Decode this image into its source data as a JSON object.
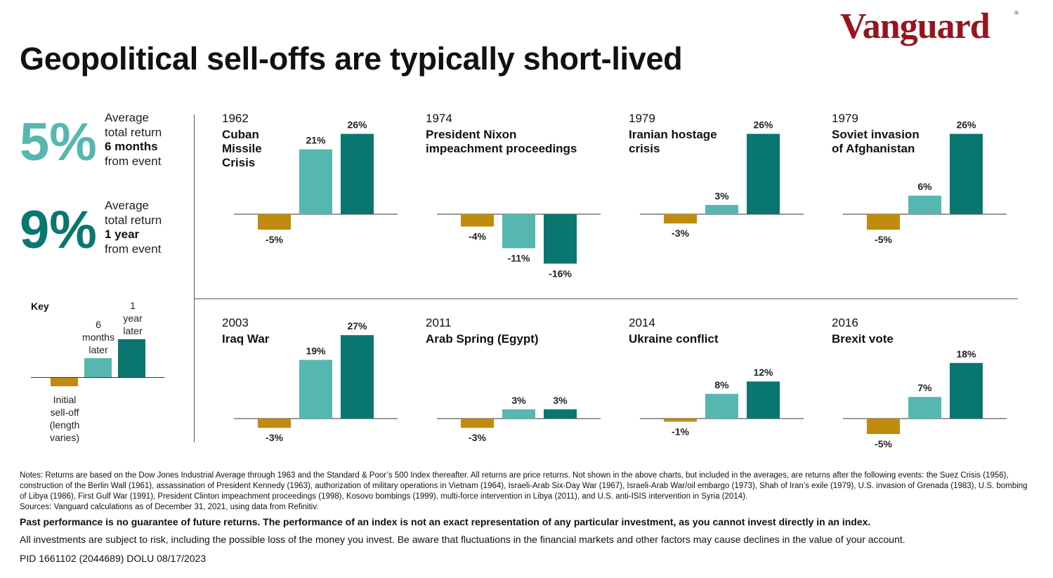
{
  "brand": "Vanguard",
  "title": "Geopolitical sell-offs are typically short-lived",
  "colors": {
    "initial": "#c08b0e",
    "six_months": "#56b7b0",
    "one_year": "#0a7670",
    "brand": "#96151d"
  },
  "stats": [
    {
      "value": "5%",
      "line1": "Average",
      "line2": "total return",
      "line3": "6 months",
      "line4": "from event"
    },
    {
      "value": "9%",
      "line1": "Average",
      "line2": "total return",
      "line3": "1 year",
      "line4": "from event"
    }
  ],
  "key": {
    "title": "Key",
    "one_year_label": [
      "1",
      "year",
      "later"
    ],
    "six_months_label": [
      "6",
      "months",
      "later"
    ],
    "initial_label": [
      "Initial",
      "sell-off",
      "(length",
      "varies)"
    ]
  },
  "chart_data": [
    {
      "type": "bar",
      "year": "1962",
      "title_lines": [
        "Cuban",
        "Missile",
        "Crisis"
      ],
      "categories": [
        "Initial sell-off",
        "6 months later",
        "1 year later"
      ],
      "values": [
        -5,
        21,
        26
      ],
      "labels": [
        "-5%",
        "21%",
        "26%"
      ]
    },
    {
      "type": "bar",
      "year": "1974",
      "title_lines": [
        "President Nixon",
        "impeachment proceedings"
      ],
      "categories": [
        "Initial sell-off",
        "6 months later",
        "1 year later"
      ],
      "values": [
        -4,
        -11,
        -16
      ],
      "labels": [
        "-4%",
        "-11%",
        "-16%"
      ]
    },
    {
      "type": "bar",
      "year": "1979",
      "title_lines": [
        "Iranian hostage",
        "crisis"
      ],
      "categories": [
        "Initial sell-off",
        "6 months later",
        "1 year later"
      ],
      "values": [
        -3,
        3,
        26
      ],
      "labels": [
        "-3%",
        "3%",
        "26%"
      ]
    },
    {
      "type": "bar",
      "year": "1979",
      "title_lines": [
        "Soviet invasion",
        "of Afghanistan"
      ],
      "categories": [
        "Initial sell-off",
        "6 months later",
        "1 year later"
      ],
      "values": [
        -5,
        6,
        26
      ],
      "labels": [
        "-5%",
        "6%",
        "26%"
      ]
    },
    {
      "type": "bar",
      "year": "2003",
      "title_lines": [
        "Iraq War"
      ],
      "categories": [
        "Initial sell-off",
        "6 months later",
        "1 year later"
      ],
      "values": [
        -3,
        19,
        27
      ],
      "labels": [
        "-3%",
        "19%",
        "27%"
      ]
    },
    {
      "type": "bar",
      "year": "2011",
      "title_lines": [
        "Arab Spring (Egypt)"
      ],
      "categories": [
        "Initial sell-off",
        "6 months later",
        "1 year later"
      ],
      "values": [
        -3,
        3,
        3
      ],
      "labels": [
        "-3%",
        "3%",
        "3%"
      ]
    },
    {
      "type": "bar",
      "year": "2014",
      "title_lines": [
        "Ukraine conflict"
      ],
      "categories": [
        "Initial sell-off",
        "6 months later",
        "1 year later"
      ],
      "values": [
        -1,
        8,
        12
      ],
      "labels": [
        "-1%",
        "8%",
        "12%"
      ]
    },
    {
      "type": "bar",
      "year": "2016",
      "title_lines": [
        "Brexit vote"
      ],
      "categories": [
        "Initial sell-off",
        "6 months later",
        "1 year later"
      ],
      "values": [
        -5,
        7,
        18
      ],
      "labels": [
        "-5%",
        "7%",
        "18%"
      ]
    }
  ],
  "notes": {
    "main": "Notes: Returns are based on the Dow Jones Industrial Average through 1963 and the Standard & Poor’s 500 Index thereafter. All returns are price returns. Not shown in the above charts, but included in the averages, are returns after the following events: the Suez Crisis (1956), construction of the Berlin Wall (1961), assassination of President Kennedy (1963), authorization of military operations in Vietnam (1964), Israeli-Arab Six-Day War (1967), Israeli-Arab War/oil embargo (1973), Shah of Iran’s exile (1979), U.S. invasion of Grenada (1983), U.S. bombing of Libya (1986), First Gulf War (1991), President Clinton impeachment proceedings (1998), Kosovo bombings (1999), multi-force intervention in Libya (2011), and U.S. anti-ISIS intervention in Syria (2014).",
    "sources": "Sources: Vanguard calculations as of December 31, 2021, using data from Refinitiv."
  },
  "disclaimer": "Past performance is no guarantee of future returns. The performance of an index is not an exact representation of any particular investment, as you cannot invest directly in an index.",
  "risk": "All investments are subject to risk, including the possible loss of the money you invest. Be aware that fluctuations in the financial markets and other factors may cause declines in the value of your account.",
  "pid": "PID 1661102 (2044689) DOLU 08/17/2023"
}
